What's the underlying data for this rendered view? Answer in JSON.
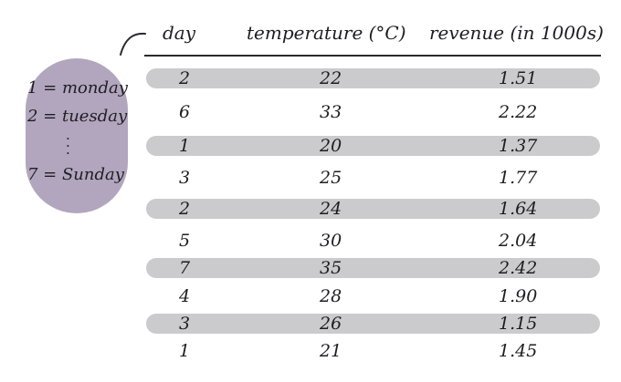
{
  "legend": {
    "line1": "1 = monday",
    "line2": "2 = tuesday",
    "dots": ".\n.\n.",
    "line3": "7 = Sunday"
  },
  "table": {
    "headers": {
      "day": "day",
      "temperature": "temperature (°C)",
      "revenue": "revenue (in 1000s)"
    },
    "rows": [
      {
        "day": "2",
        "temperature": "22",
        "revenue": "1.51"
      },
      {
        "day": "6",
        "temperature": "33",
        "revenue": "2.22"
      },
      {
        "day": "1",
        "temperature": "20",
        "revenue": "1.37"
      },
      {
        "day": "3",
        "temperature": "25",
        "revenue": "1.77"
      },
      {
        "day": "2",
        "temperature": "24",
        "revenue": "1.64"
      },
      {
        "day": "5",
        "temperature": "30",
        "revenue": "2.04"
      },
      {
        "day": "7",
        "temperature": "35",
        "revenue": "2.42"
      },
      {
        "day": "4",
        "temperature": "28",
        "revenue": "1.90"
      },
      {
        "day": "3",
        "temperature": "26",
        "revenue": "1.15"
      },
      {
        "day": "1",
        "temperature": "21",
        "revenue": "1.45"
      }
    ]
  },
  "colors": {
    "legend_bubble": "#b2a6be",
    "row_shading": "#cbcbcd",
    "ink": "#1e1e22"
  }
}
